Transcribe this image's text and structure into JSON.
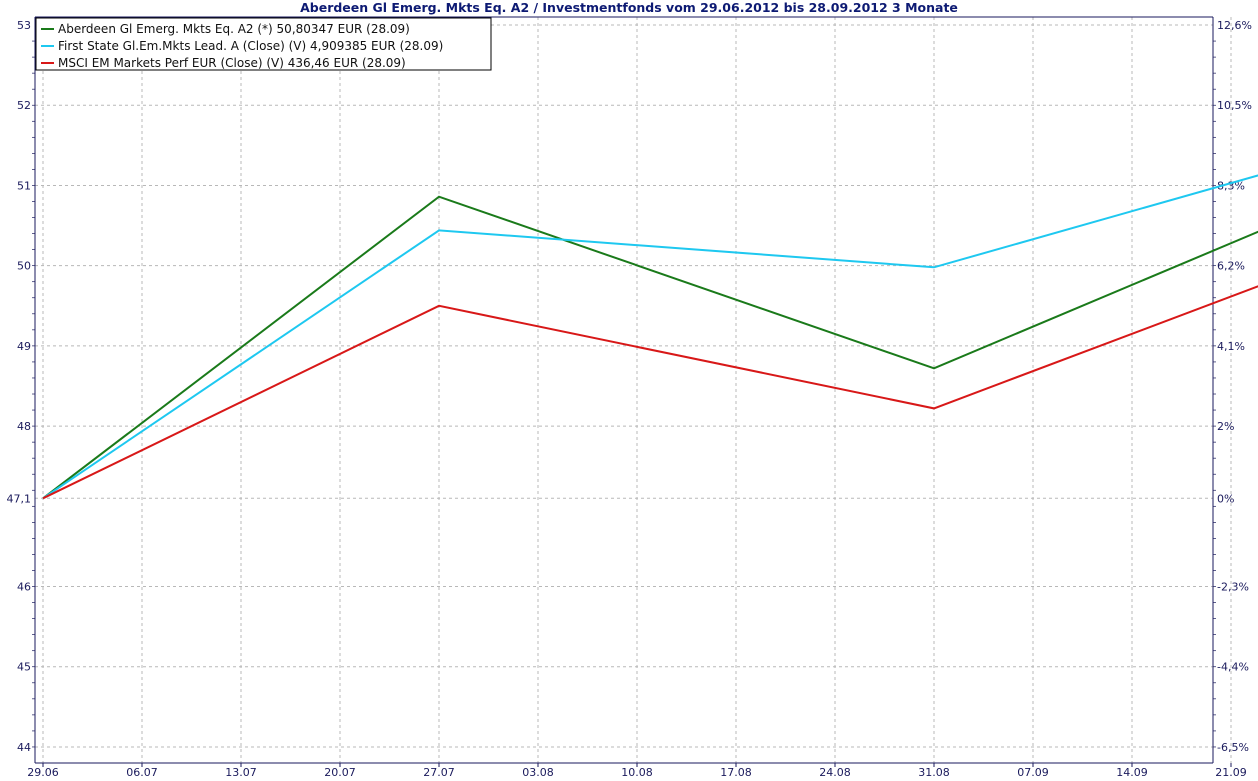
{
  "chart_data": {
    "type": "line",
    "title": "Aberdeen Gl Emerg. Mkts Eq. A2 / Investmentfonds vom 29.06.2012 bis 28.09.2012 3 Monate",
    "x": [
      "29.06",
      "27.07",
      "31.08",
      "28.09"
    ],
    "x_tick_labels": [
      "29.06",
      "06.07",
      "13.07",
      "20.07",
      "27.07",
      "03.08",
      "10.08",
      "17.08",
      "24.08",
      "31.08",
      "07.09",
      "14.09",
      "21.09"
    ],
    "y_left_ticks": [
      "53",
      "52",
      "51",
      "50",
      "49",
      "48",
      "47,1",
      "46",
      "45",
      "44"
    ],
    "y_right_ticks": [
      "12,6%",
      "10,5%",
      "8,3%",
      "6,2%",
      "4,1%",
      "2%",
      "0%",
      "-2,3%",
      "-4,4%",
      "-6,5%"
    ],
    "ylim": [
      43.8,
      53.1
    ],
    "grid": true,
    "legend_position": "top-left",
    "series": [
      {
        "name": "Aberdeen Gl Emerg. Mkts Eq. A2 (*) 50,80347 EUR (28.09)",
        "color": "#1a7a1a",
        "values": [
          47.1,
          50.86,
          48.72,
          50.8
        ]
      },
      {
        "name": "First State Gl.Em.Mkts Lead. A (Close) (V) 4,909385 EUR (28.09)",
        "color": "#1ec8f0",
        "values": [
          47.1,
          50.44,
          49.98,
          51.38
        ]
      },
      {
        "name": "MSCI EM Markets Perf EUR (Close) (V) 436,46 EUR (28.09)",
        "color": "#d81818",
        "values": [
          47.1,
          49.5,
          48.22,
          50.08
        ]
      }
    ]
  }
}
